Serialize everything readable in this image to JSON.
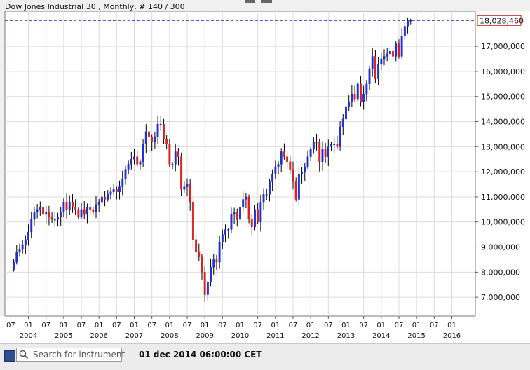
{
  "header": {
    "title": "Dow Jones Industrial 30 , Monthly, # 140 / 300"
  },
  "toolbar": {
    "search_placeholder": "Search for instrument",
    "datetime": "01 dec 2014 06:00:00 CET"
  },
  "colors": {
    "up": "#1f2fd8",
    "down": "#dd1f1f",
    "wick": "#000000",
    "grid": "#dcdcdc",
    "last_price_line": "#2020c8",
    "last_price_box": "#cc2222"
  },
  "chart_data": {
    "type": "candlestick",
    "title": "Dow Jones Industrial 30 , Monthly, # 140 / 300",
    "ylim": [
      6250000,
      18400000
    ],
    "y_ticks": [
      7000000,
      8000000,
      9000000,
      10000000,
      11000000,
      12000000,
      13000000,
      14000000,
      15000000,
      16000000,
      17000000
    ],
    "y_tick_labels": [
      "7,000,000",
      "8,000,000",
      "9,000,000",
      "10,000,000",
      "11,000,000",
      "12,000,000",
      "13,000,000",
      "14,000,000",
      "15,000,000",
      "16,000,000",
      "17,000,000"
    ],
    "last_price": 18028460,
    "last_price_label": "18,028,460",
    "x_range": [
      "2003-05",
      "2016-09"
    ],
    "x_ticks": [
      {
        "date": "2003-07",
        "label": "07",
        "year": ""
      },
      {
        "date": "2004-01",
        "label": "01",
        "year": "2004"
      },
      {
        "date": "2004-07",
        "label": "07",
        "year": ""
      },
      {
        "date": "2005-01",
        "label": "01",
        "year": "2005"
      },
      {
        "date": "2005-07",
        "label": "07",
        "year": ""
      },
      {
        "date": "2006-01",
        "label": "01",
        "year": "2006"
      },
      {
        "date": "2006-07",
        "label": "07",
        "year": ""
      },
      {
        "date": "2007-01",
        "label": "01",
        "year": "2007"
      },
      {
        "date": "2007-07",
        "label": "07",
        "year": ""
      },
      {
        "date": "2008-01",
        "label": "01",
        "year": "2008"
      },
      {
        "date": "2008-07",
        "label": "07",
        "year": ""
      },
      {
        "date": "2009-01",
        "label": "01",
        "year": "2009"
      },
      {
        "date": "2009-07",
        "label": "07",
        "year": ""
      },
      {
        "date": "2010-01",
        "label": "01",
        "year": "2010"
      },
      {
        "date": "2010-07",
        "label": "07",
        "year": ""
      },
      {
        "date": "2011-01",
        "label": "01",
        "year": "2011"
      },
      {
        "date": "2011-07",
        "label": "07",
        "year": ""
      },
      {
        "date": "2012-01",
        "label": "01",
        "year": "2012"
      },
      {
        "date": "2012-07",
        "label": "07",
        "year": ""
      },
      {
        "date": "2013-01",
        "label": "01",
        "year": "2013"
      },
      {
        "date": "2013-07",
        "label": "07",
        "year": ""
      },
      {
        "date": "2014-01",
        "label": "01",
        "year": "2014"
      },
      {
        "date": "2014-07",
        "label": "07",
        "year": ""
      },
      {
        "date": "2015-01",
        "label": "01",
        "year": "2015"
      },
      {
        "date": "2015-07",
        "label": "07",
        "year": ""
      },
      {
        "date": "2016-01",
        "label": "01",
        "year": "2016"
      }
    ],
    "start_month": "2003-08",
    "closes": [
      8400000,
      8800000,
      8900000,
      9100000,
      9300000,
      9600000,
      10100000,
      10400000,
      10500000,
      10600000,
      10300000,
      10400000,
      10200000,
      10100000,
      10100000,
      10200000,
      10400000,
      10800000,
      10500000,
      10800000,
      10600000,
      10500000,
      10200000,
      10500000,
      10300000,
      10600000,
      10500000,
      10400000,
      10700000,
      10800000,
      11000000,
      10900000,
      11100000,
      11200000,
      11300000,
      11200000,
      11400000,
      11700000,
      12100000,
      12300000,
      12500000,
      12600000,
      12300000,
      12400000,
      13100000,
      13600000,
      13400000,
      13200000,
      13400000,
      13900000,
      13900000,
      13300000,
      13100000,
      12300000,
      12300000,
      12800000,
      12600000,
      11300000,
      11400000,
      11500000,
      10800000,
      9300000,
      8800000,
      8600000,
      8000000,
      7100000,
      7600000,
      8200000,
      8500000,
      8400000,
      9200000,
      9500000,
      9700000,
      9700000,
      10300000,
      10400000,
      10100000,
      10600000,
      10900000,
      11000000,
      10100000,
      9800000,
      10500000,
      10000000,
      10800000,
      11100000,
      11100000,
      11600000,
      11900000,
      12200000,
      12300000,
      12800000,
      12600000,
      12400000,
      12100000,
      11600000,
      10900000,
      11900000,
      12000000,
      12200000,
      12600000,
      12900000,
      13200000,
      13200000,
      12400000,
      12900000,
      12600000,
      13000000,
      13100000,
      13100000,
      13000000,
      13800000,
      14100000,
      14600000,
      14800000,
      15100000,
      14900000,
      15500000,
      14800000,
      15100000,
      15500000,
      16100000,
      16600000,
      15700000,
      16300000,
      16500000,
      16600000,
      16700000,
      16800000,
      16600000,
      17100000,
      16600000,
      17400000,
      17800000,
      18000000,
      18028460
    ]
  }
}
